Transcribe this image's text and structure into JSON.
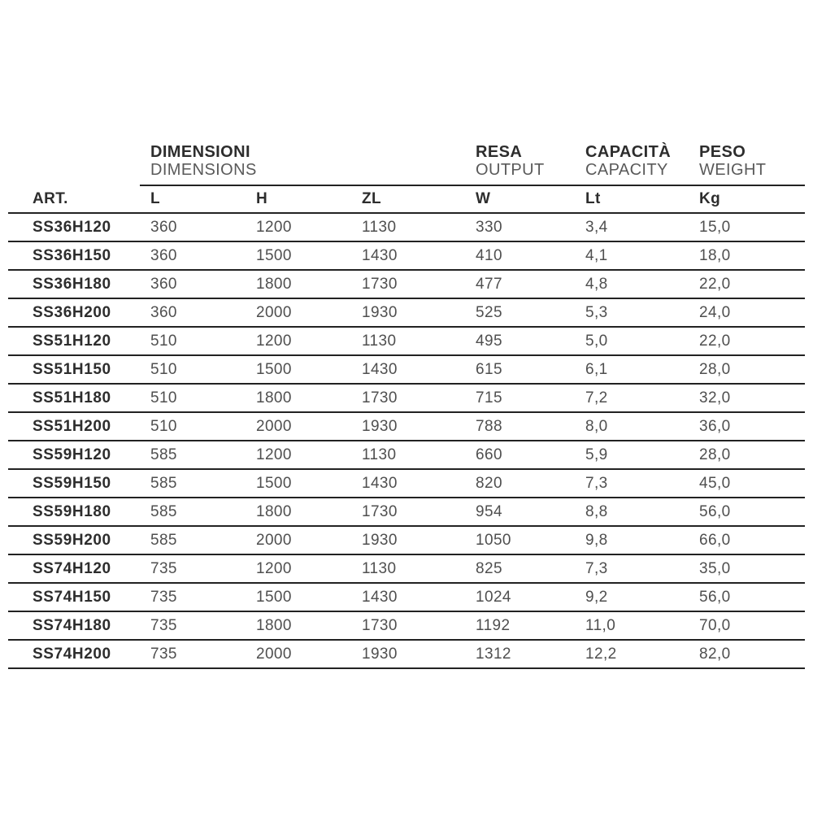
{
  "table": {
    "group_headers": {
      "dimensions": {
        "it": "DIMENSIONI",
        "en": "DIMENSIONS"
      },
      "output": {
        "it": "RESA",
        "en": "OUTPUT"
      },
      "capacity": {
        "it": "CAPACITÀ",
        "en": "CAPACITY"
      },
      "weight": {
        "it": "PESO",
        "en": "WEIGHT"
      }
    },
    "columns": {
      "art": "ART.",
      "l": "L",
      "h": "H",
      "zl": "ZL",
      "w": "W",
      "lt": "Lt",
      "kg": "Kg"
    },
    "rows": [
      {
        "art": "SS36H120",
        "l": "360",
        "h": "1200",
        "zl": "1130",
        "w": "330",
        "lt": "3,4",
        "kg": "15,0"
      },
      {
        "art": "SS36H150",
        "l": "360",
        "h": "1500",
        "zl": "1430",
        "w": "410",
        "lt": "4,1",
        "kg": "18,0"
      },
      {
        "art": "SS36H180",
        "l": "360",
        "h": "1800",
        "zl": "1730",
        "w": "477",
        "lt": "4,8",
        "kg": "22,0"
      },
      {
        "art": "SS36H200",
        "l": "360",
        "h": "2000",
        "zl": "1930",
        "w": "525",
        "lt": "5,3",
        "kg": "24,0"
      },
      {
        "art": "SS51H120",
        "l": "510",
        "h": "1200",
        "zl": "1130",
        "w": "495",
        "lt": "5,0",
        "kg": "22,0"
      },
      {
        "art": "SS51H150",
        "l": "510",
        "h": "1500",
        "zl": "1430",
        "w": "615",
        "lt": "6,1",
        "kg": "28,0"
      },
      {
        "art": "SS51H180",
        "l": "510",
        "h": "1800",
        "zl": "1730",
        "w": "715",
        "lt": "7,2",
        "kg": "32,0"
      },
      {
        "art": "SS51H200",
        "l": "510",
        "h": "2000",
        "zl": "1930",
        "w": "788",
        "lt": "8,0",
        "kg": "36,0"
      },
      {
        "art": "SS59H120",
        "l": "585",
        "h": "1200",
        "zl": "1130",
        "w": "660",
        "lt": "5,9",
        "kg": "28,0"
      },
      {
        "art": "SS59H150",
        "l": "585",
        "h": "1500",
        "zl": "1430",
        "w": "820",
        "lt": "7,3",
        "kg": "45,0"
      },
      {
        "art": "SS59H180",
        "l": "585",
        "h": "1800",
        "zl": "1730",
        "w": "954",
        "lt": "8,8",
        "kg": "56,0"
      },
      {
        "art": "SS59H200",
        "l": "585",
        "h": "2000",
        "zl": "1930",
        "w": "1050",
        "lt": "9,8",
        "kg": "66,0"
      },
      {
        "art": "SS74H120",
        "l": "735",
        "h": "1200",
        "zl": "1130",
        "w": "825",
        "lt": "7,3",
        "kg": "35,0"
      },
      {
        "art": "SS74H150",
        "l": "735",
        "h": "1500",
        "zl": "1430",
        "w": "1024",
        "lt": "9,2",
        "kg": "56,0"
      },
      {
        "art": "SS74H180",
        "l": "735",
        "h": "1800",
        "zl": "1730",
        "w": "1192",
        "lt": "11,0",
        "kg": "70,0"
      },
      {
        "art": "SS74H200",
        "l": "735",
        "h": "2000",
        "zl": "1930",
        "w": "1312",
        "lt": "12,2",
        "kg": "82,0"
      }
    ],
    "colors": {
      "rule": "#222222",
      "heading_text": "#2d2d2d",
      "secondary_text": "#5a5a5a",
      "value_text": "#4f4f4f",
      "background": "#ffffff"
    }
  }
}
